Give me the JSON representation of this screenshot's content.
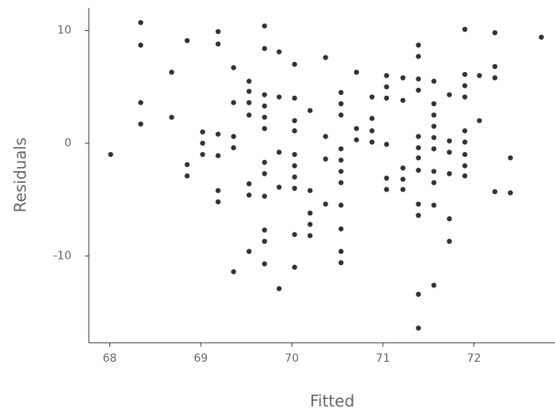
{
  "chart_data": {
    "type": "scatter",
    "x_label": "Fitted",
    "y_label": "Residuals",
    "color": "#333333",
    "xlim": [
      67.77,
      72.89
    ],
    "ylim": [
      -17.7,
      12
    ],
    "xticks": [
      68,
      69,
      70,
      71,
      72
    ],
    "yticks": [
      -10,
      0,
      10
    ],
    "x": [
      68.01,
      68.34,
      68.34,
      68.34,
      68.34,
      68.68,
      68.68,
      68.85,
      68.85,
      68.85,
      69.02,
      69.02,
      69.02,
      69.19,
      69.19,
      69.19,
      69.19,
      69.19,
      69.19,
      69.36,
      69.36,
      69.36,
      69.36,
      69.36,
      69.53,
      69.53,
      69.53,
      69.53,
      69.53,
      69.53,
      69.53,
      69.7,
      69.7,
      69.7,
      69.7,
      69.7,
      69.7,
      69.7,
      69.7,
      69.7,
      69.7,
      69.7,
      69.7,
      69.86,
      69.86,
      69.86,
      69.86,
      69.86,
      70.03,
      70.03,
      70.03,
      70.03,
      70.03,
      70.03,
      70.03,
      70.03,
      70.03,
      70.03,
      70.2,
      70.2,
      70.2,
      70.2,
      70.2,
      70.37,
      70.37,
      70.37,
      70.37,
      70.54,
      70.54,
      70.54,
      70.54,
      70.54,
      70.54,
      70.54,
      70.54,
      70.54,
      70.54,
      70.54,
      70.71,
      70.71,
      70.71,
      70.88,
      70.88,
      70.88,
      70.88,
      71.04,
      71.04,
      71.04,
      71.04,
      71.04,
      71.04,
      71.22,
      71.22,
      71.22,
      71.22,
      71.22,
      71.39,
      71.39,
      71.39,
      71.39,
      71.39,
      71.39,
      71.39,
      71.39,
      71.39,
      71.39,
      71.39,
      71.39,
      71.56,
      71.56,
      71.56,
      71.56,
      71.56,
      71.56,
      71.56,
      71.56,
      71.56,
      71.56,
      71.73,
      71.73,
      71.73,
      71.73,
      71.73,
      71.73,
      71.9,
      71.9,
      71.9,
      71.9,
      71.9,
      71.9,
      71.9,
      71.9,
      71.9,
      72.06,
      72.06,
      72.23,
      72.23,
      72.23,
      72.23,
      72.4,
      72.4,
      72.74
    ],
    "values": [
      -1.0,
      10.7,
      8.7,
      3.6,
      1.7,
      6.3,
      2.3,
      9.1,
      -1.9,
      -2.9,
      1.0,
      0,
      -1.0,
      9.9,
      8.8,
      0.8,
      -1.1,
      -4.2,
      -5.2,
      6.7,
      3.6,
      0.6,
      -0.4,
      -11.4,
      5.5,
      4.6,
      3.6,
      2.5,
      -3.6,
      -4.6,
      -9.6,
      10.4,
      8.4,
      4.3,
      3.3,
      2.3,
      1.3,
      -1.7,
      -2.7,
      -4.7,
      -7.7,
      -8.7,
      -10.7,
      8.1,
      4.1,
      -0.8,
      -3.9,
      -12.9,
      7.0,
      4.0,
      2.0,
      1.1,
      -1.0,
      -2.0,
      -3.0,
      -4.0,
      -8.1,
      -11.0,
      2.9,
      -4.2,
      -6.2,
      -7.2,
      -8.2,
      7.6,
      0.6,
      -1.4,
      -5.4,
      4.5,
      3.5,
      2.5,
      -0.5,
      -1.5,
      -2.5,
      -3.5,
      -5.5,
      -7.6,
      -9.6,
      -10.6,
      6.3,
      1.3,
      0.3,
      4.1,
      2.2,
      1.1,
      0.1,
      6.0,
      5.0,
      4.0,
      -0.1,
      -3.1,
      -4.1,
      5.8,
      3.8,
      -2.2,
      -3.2,
      -4.1,
      8.7,
      7.7,
      5.7,
      4.7,
      0.6,
      -0.4,
      -1.3,
      -2.4,
      -5.4,
      -6.4,
      -13.4,
      -16.4,
      5.5,
      3.5,
      2.5,
      1.5,
      0.5,
      -0.5,
      -2.5,
      -3.5,
      -5.5,
      -12.6,
      4.3,
      0.2,
      -0.8,
      -2.7,
      -6.7,
      -8.7,
      10.1,
      6.1,
      5.1,
      4.1,
      1.1,
      0.1,
      -1.0,
      -2.0,
      -2.9,
      6.0,
      2.0,
      9.8,
      6.8,
      5.8,
      -4.3,
      -1.3,
      -4.4,
      9.4
    ]
  }
}
